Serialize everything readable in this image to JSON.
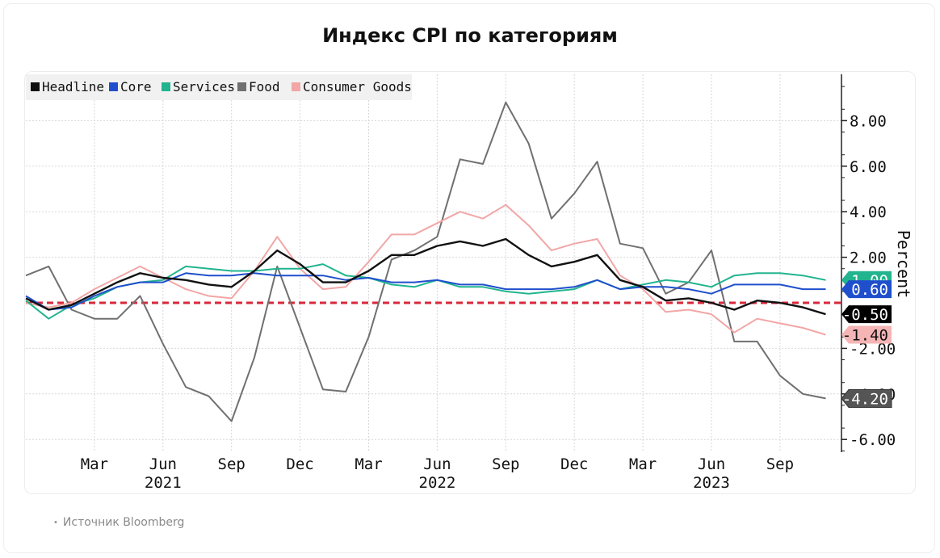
{
  "page": {
    "title": "Индекс CPI по категориям",
    "source_bullet": "•",
    "source": "Источник Bloomberg"
  },
  "colors": {
    "headline": "#111111",
    "core": "#1f4fcc",
    "services": "#22b48e",
    "food": "#707070",
    "consumer_goods": "#f2a6a6",
    "zero_line": "#d9283a"
  },
  "chart_data": {
    "type": "line",
    "title": "Индекс CPI по категориям",
    "ylabel": "Percent",
    "xlabel": "",
    "ylim": [
      -6.5,
      10
    ],
    "x": [
      "2020-12",
      "2021-01",
      "2021-02",
      "2021-03",
      "2021-04",
      "2021-05",
      "2021-06",
      "2021-07",
      "2021-08",
      "2021-09",
      "2021-10",
      "2021-11",
      "2021-12",
      "2022-01",
      "2022-02",
      "2022-03",
      "2022-04",
      "2022-05",
      "2022-06",
      "2022-07",
      "2022-08",
      "2022-09",
      "2022-10",
      "2022-11",
      "2022-12",
      "2023-01",
      "2023-02",
      "2023-03",
      "2023-04",
      "2023-05",
      "2023-06",
      "2023-07",
      "2023-08",
      "2023-09",
      "2023-10",
      "2023-11"
    ],
    "y_ticks": [
      "8.00",
      "6.00",
      "4.00",
      "2.00",
      "-2.00",
      "-4.00",
      "-6.00"
    ],
    "y_tick_values": [
      8,
      6,
      4,
      2,
      -2,
      -4,
      -6
    ],
    "x_tick_labels": [
      "Mar",
      "Jun",
      "Sep",
      "Dec",
      "Mar",
      "Jun",
      "Sep",
      "Dec",
      "Mar",
      "Jun",
      "Sep"
    ],
    "x_tick_months": [
      "2021-03",
      "2021-06",
      "2021-09",
      "2021-12",
      "2022-03",
      "2022-06",
      "2022-09",
      "2022-12",
      "2023-03",
      "2023-06",
      "2023-09"
    ],
    "year_labels": [
      "2021",
      "2022",
      "2023"
    ],
    "year_label_months": [
      "2021-06",
      "2022-06",
      "2023-06"
    ],
    "reference_line": 0,
    "legend_position": "top-left",
    "grid": true,
    "series": [
      {
        "key": "headline",
        "name": "Headline",
        "end_label": "-0.50",
        "values": [
          0.2,
          -0.3,
          -0.1,
          0.4,
          0.9,
          1.3,
          1.1,
          1.0,
          0.8,
          0.7,
          1.4,
          2.3,
          1.7,
          0.9,
          0.9,
          1.4,
          2.1,
          2.1,
          2.5,
          2.7,
          2.5,
          2.8,
          2.1,
          1.6,
          1.8,
          2.1,
          1.0,
          0.7,
          0.1,
          0.2,
          0.0,
          -0.3,
          0.1,
          0.0,
          -0.2,
          -0.5
        ]
      },
      {
        "key": "core",
        "name": "Core",
        "end_label": "0.60",
        "values": [
          0.3,
          -0.3,
          -0.2,
          0.3,
          0.7,
          0.9,
          0.9,
          1.3,
          1.2,
          1.2,
          1.3,
          1.2,
          1.2,
          1.2,
          1.0,
          1.1,
          0.9,
          0.9,
          1.0,
          0.8,
          0.8,
          0.6,
          0.6,
          0.6,
          0.7,
          1.0,
          0.6,
          0.7,
          0.7,
          0.6,
          0.4,
          0.8,
          0.8,
          0.8,
          0.6,
          0.6
        ]
      },
      {
        "key": "services",
        "name": "Services",
        "end_label": "1.00",
        "values": [
          0.1,
          -0.7,
          -0.1,
          0.2,
          0.7,
          0.9,
          1.0,
          1.6,
          1.5,
          1.4,
          1.4,
          1.5,
          1.5,
          1.7,
          1.2,
          1.1,
          0.8,
          0.7,
          1.0,
          0.7,
          0.7,
          0.5,
          0.4,
          0.5,
          0.6,
          1.0,
          0.6,
          0.8,
          1.0,
          0.9,
          0.7,
          1.2,
          1.3,
          1.3,
          1.2,
          1.0
        ]
      },
      {
        "key": "food",
        "name": "Food",
        "end_label": "-4.20",
        "values": [
          1.2,
          1.6,
          -0.3,
          -0.7,
          -0.7,
          0.3,
          -1.8,
          -3.7,
          -4.1,
          -5.2,
          -2.4,
          1.6,
          -1.1,
          -3.8,
          -3.9,
          -1.5,
          1.9,
          2.3,
          2.9,
          6.3,
          6.1,
          8.8,
          7.0,
          3.7,
          4.8,
          6.2,
          2.6,
          2.4,
          0.4,
          0.9,
          2.3,
          -1.7,
          -1.7,
          -3.2,
          -4.0,
          -4.2
        ]
      },
      {
        "key": "consumer_goods",
        "name": "Consumer Goods",
        "end_label": "-1.40",
        "values": [
          0.0,
          -0.2,
          0.0,
          0.6,
          1.1,
          1.6,
          1.1,
          0.6,
          0.3,
          0.2,
          1.4,
          2.9,
          1.5,
          0.6,
          0.7,
          1.8,
          3.0,
          3.0,
          3.5,
          4.0,
          3.7,
          4.3,
          3.4,
          2.3,
          2.6,
          2.8,
          1.2,
          0.6,
          -0.4,
          -0.3,
          -0.5,
          -1.3,
          -0.7,
          -0.9,
          -1.1,
          -1.4
        ]
      }
    ]
  }
}
